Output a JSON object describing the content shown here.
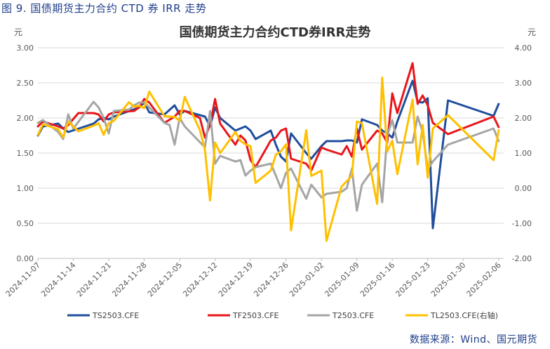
{
  "caption": "图 9.  国债期货主力合约 CTD 券 IRR 走势",
  "source": "数据来源：Wind、国元期货",
  "chart_data": {
    "type": "line",
    "title": "国债期货主力合约CTD券IRR走势",
    "left_unit": "元",
    "right_unit": "元",
    "ylim": [
      0,
      3
    ],
    "y2lim": [
      -2,
      4
    ],
    "yticks": [
      "0.00",
      "0.50",
      "1.00",
      "1.50",
      "2.00",
      "2.50",
      "3.00"
    ],
    "y2ticks": [
      "-2.00",
      "-1.00",
      "0.00",
      "1.00",
      "2.00",
      "3.00",
      "4.00"
    ],
    "xrange": [
      "2024-11-07",
      "2025-02-07"
    ],
    "xticks": [
      "2024-11-07",
      "2024-11-14",
      "2024-11-21",
      "2024-11-28",
      "2024-12-05",
      "2024-12-12",
      "2024-12-19",
      "2024-12-26",
      "2025-01-02",
      "2025-01-09",
      "2025-01-16",
      "2025-01-23",
      "2025-01-30",
      "2025-02-06"
    ],
    "legend_position": "bottom",
    "series": [
      {
        "name": "TS2503.CFE",
        "color": "#1f4e9c",
        "axis": "left",
        "x": [
          "2024-11-07",
          "2024-11-08",
          "2024-11-11",
          "2024-11-12",
          "2024-11-13",
          "2024-11-18",
          "2024-11-19",
          "2024-11-20",
          "2024-11-21",
          "2024-11-22",
          "2024-11-27",
          "2024-11-28",
          "2024-11-29",
          "2024-12-02",
          "2024-12-04",
          "2024-12-05",
          "2024-12-06",
          "2024-12-10",
          "2024-12-11",
          "2024-12-12",
          "2024-12-13",
          "2024-12-16",
          "2024-12-17",
          "2024-12-18",
          "2024-12-19",
          "2024-12-20",
          "2024-12-23",
          "2024-12-24",
          "2024-12-25",
          "2024-12-26",
          "2024-12-27",
          "2024-12-30",
          "2024-12-31",
          "2025-01-02",
          "2025-01-03",
          "2025-01-06",
          "2025-01-07",
          "2025-01-08",
          "2025-01-09",
          "2025-01-10",
          "2025-01-13",
          "2025-01-14",
          "2025-01-15",
          "2025-01-16",
          "2025-01-17",
          "2025-01-20",
          "2025-01-21",
          "2025-01-22",
          "2025-01-23",
          "2025-01-24",
          "2025-01-27",
          "2025-02-05",
          "2025-02-06"
        ],
        "values": [
          1.75,
          1.88,
          1.92,
          1.85,
          1.8,
          1.92,
          1.98,
          2.0,
          1.98,
          2.02,
          2.15,
          2.22,
          2.08,
          2.05,
          2.18,
          2.05,
          2.1,
          2.02,
          1.88,
          2.15,
          2.0,
          1.82,
          1.85,
          1.88,
          1.82,
          1.7,
          1.82,
          1.62,
          1.45,
          1.38,
          1.78,
          1.5,
          1.42,
          1.6,
          1.67,
          1.67,
          1.68,
          1.68,
          1.65,
          1.98,
          1.9,
          1.82,
          1.78,
          1.72,
          1.95,
          2.53,
          2.23,
          2.22,
          2.28,
          0.43,
          2.25,
          2.03,
          2.2
        ]
      },
      {
        "name": "TF2503.CFE",
        "color": "#e8161b",
        "axis": "left",
        "x": [
          "2024-11-07",
          "2024-11-08",
          "2024-11-11",
          "2024-11-12",
          "2024-11-13",
          "2024-11-15",
          "2024-11-18",
          "2024-11-19",
          "2024-11-20",
          "2024-11-21",
          "2024-11-22",
          "2024-11-26",
          "2024-11-27",
          "2024-11-28",
          "2024-11-29",
          "2024-12-02",
          "2024-12-04",
          "2024-12-05",
          "2024-12-06",
          "2024-12-09",
          "2024-12-10",
          "2024-12-11",
          "2024-12-12",
          "2024-12-13",
          "2024-12-16",
          "2024-12-17",
          "2024-12-18",
          "2024-12-19",
          "2024-12-20",
          "2024-12-23",
          "2024-12-24",
          "2024-12-25",
          "2024-12-26",
          "2024-12-27",
          "2024-12-30",
          "2024-12-31",
          "2025-01-02",
          "2025-01-03",
          "2025-01-06",
          "2025-01-07",
          "2025-01-08",
          "2025-01-09",
          "2025-01-10",
          "2025-01-13",
          "2025-01-14",
          "2025-01-15",
          "2025-01-16",
          "2025-01-17",
          "2025-01-20",
          "2025-01-21",
          "2025-01-22",
          "2025-01-23",
          "2025-01-24",
          "2025-01-27",
          "2025-02-05",
          "2025-02-06"
        ],
        "values": [
          1.88,
          1.95,
          1.88,
          1.85,
          1.9,
          2.07,
          2.07,
          2.05,
          1.95,
          2.05,
          2.08,
          2.1,
          2.15,
          2.27,
          2.22,
          1.93,
          2.02,
          2.1,
          2.1,
          2.0,
          1.72,
          1.9,
          2.27,
          1.92,
          1.62,
          1.75,
          1.68,
          1.4,
          1.3,
          1.68,
          1.72,
          1.82,
          1.85,
          1.42,
          1.35,
          1.25,
          1.58,
          1.55,
          1.48,
          1.6,
          1.45,
          1.85,
          1.55,
          1.82,
          1.78,
          1.65,
          2.35,
          2.07,
          2.78,
          2.2,
          2.32,
          2.18,
          1.93,
          1.77,
          2.02,
          1.87
        ]
      },
      {
        "name": "T2503.CFE",
        "color": "#a5a5a5",
        "axis": "left",
        "x": [
          "2024-11-07",
          "2024-11-08",
          "2024-11-11",
          "2024-11-12",
          "2024-11-13",
          "2024-11-14",
          "2024-11-18",
          "2024-11-19",
          "2024-11-20",
          "2024-11-21",
          "2024-11-22",
          "2024-11-25",
          "2024-11-26",
          "2024-11-27",
          "2024-11-28",
          "2024-11-29",
          "2024-12-02",
          "2024-12-03",
          "2024-12-04",
          "2024-12-05",
          "2024-12-06",
          "2024-12-10",
          "2024-12-11",
          "2024-12-12",
          "2024-12-13",
          "2024-12-16",
          "2024-12-17",
          "2024-12-18",
          "2024-12-19",
          "2024-12-20",
          "2024-12-23",
          "2024-12-24",
          "2024-12-25",
          "2024-12-26",
          "2024-12-27",
          "2024-12-30",
          "2024-12-31",
          "2025-01-02",
          "2025-01-03",
          "2025-01-06",
          "2025-01-07",
          "2025-01-08",
          "2025-01-09",
          "2025-01-10",
          "2025-01-13",
          "2025-01-14",
          "2025-01-15",
          "2025-01-16",
          "2025-01-17",
          "2025-01-20",
          "2025-01-21",
          "2025-01-22",
          "2025-01-23",
          "2025-01-24",
          "2025-01-27",
          "2025-02-05",
          "2025-02-06"
        ],
        "values": [
          1.93,
          1.97,
          1.8,
          1.7,
          2.05,
          1.85,
          2.23,
          2.15,
          2.0,
          1.78,
          2.1,
          2.12,
          2.18,
          2.22,
          2.22,
          2.15,
          1.93,
          1.9,
          1.62,
          2.0,
          1.88,
          1.58,
          2.1,
          1.35,
          1.46,
          1.38,
          1.4,
          1.18,
          1.25,
          1.3,
          1.35,
          1.18,
          1.0,
          1.22,
          1.28,
          0.85,
          1.05,
          0.87,
          0.92,
          0.95,
          1.0,
          1.28,
          0.68,
          1.05,
          1.35,
          0.8,
          1.75,
          1.97,
          1.65,
          1.65,
          2.02,
          1.8,
          1.27,
          1.38,
          1.62,
          1.85,
          1.67
        ]
      },
      {
        "name": "TL2503.CFE(右轴)",
        "color": "#ffc000",
        "axis": "right",
        "x": [
          "2024-11-07",
          "2024-11-08",
          "2024-11-11",
          "2024-11-12",
          "2024-11-13",
          "2024-11-15",
          "2024-11-18",
          "2024-11-19",
          "2024-11-20",
          "2024-11-21",
          "2024-11-22",
          "2024-11-25",
          "2024-11-26",
          "2024-11-27",
          "2024-11-28",
          "2024-11-29",
          "2024-12-02",
          "2024-12-04",
          "2024-12-05",
          "2024-12-06",
          "2024-12-09",
          "2024-12-10",
          "2024-12-11",
          "2024-12-12",
          "2024-12-13",
          "2024-12-16",
          "2024-12-17",
          "2024-12-18",
          "2024-12-19",
          "2024-12-20",
          "2024-12-23",
          "2024-12-24",
          "2024-12-25",
          "2024-12-26",
          "2024-12-27",
          "2024-12-30",
          "2024-12-31",
          "2025-01-02",
          "2025-01-03",
          "2025-01-06",
          "2025-01-07",
          "2025-01-08",
          "2025-01-09",
          "2025-01-10",
          "2025-01-13",
          "2025-01-14",
          "2025-01-15",
          "2025-01-16",
          "2025-01-17",
          "2025-01-20",
          "2025-01-21",
          "2025-01-22",
          "2025-01-23",
          "2025-01-24",
          "2025-01-27",
          "2025-02-05",
          "2025-02-06"
        ],
        "values": [
          1.52,
          1.82,
          1.68,
          1.45,
          1.9,
          1.62,
          1.78,
          1.85,
          1.52,
          1.85,
          1.92,
          2.45,
          2.32,
          2.35,
          2.28,
          2.75,
          2.05,
          2.03,
          1.92,
          2.6,
          1.65,
          1.08,
          -0.35,
          1.3,
          1.0,
          1.6,
          1.35,
          1.25,
          1.2,
          0.15,
          0.5,
          0.95,
          1.05,
          1.25,
          -1.2,
          1.65,
          0.35,
          0.5,
          -1.5,
          0.05,
          0.2,
          0.35,
          1.9,
          1.85,
          -0.45,
          3.15,
          1.05,
          1.35,
          0.4,
          2.52,
          0.68,
          1.8,
          0.3,
          1.7,
          2.08,
          0.8,
          1.65
        ]
      }
    ]
  }
}
